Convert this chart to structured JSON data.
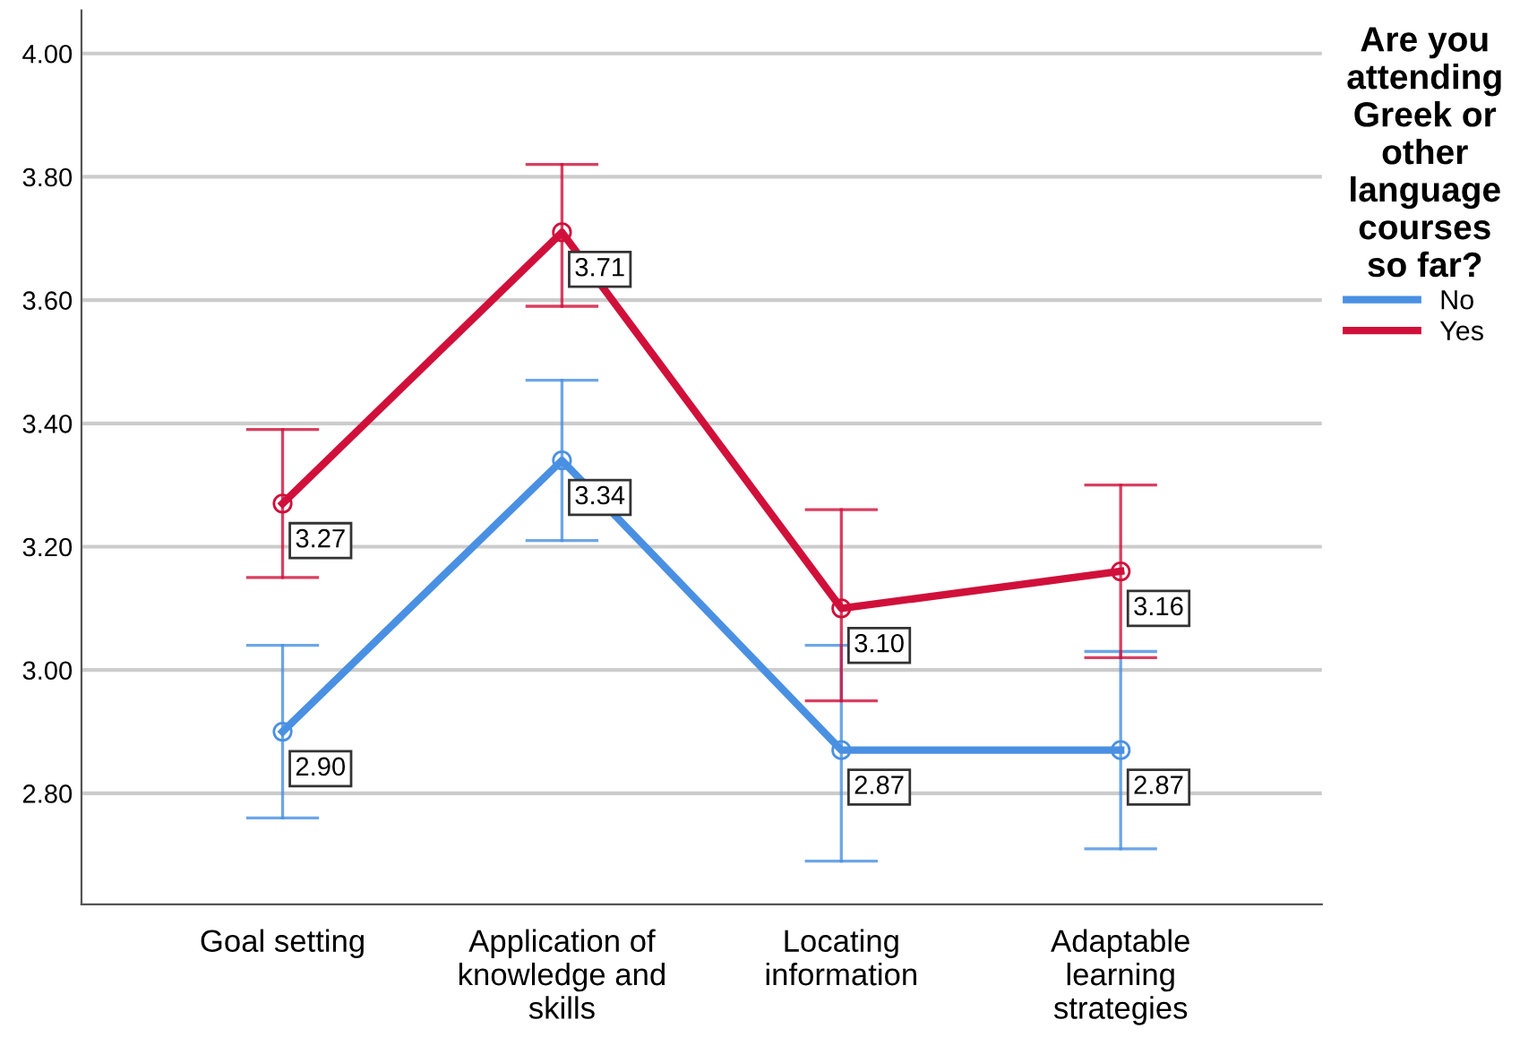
{
  "chart_data": {
    "type": "line",
    "categories": [
      "Goal setting",
      "Application of\nknowledge and\nskills",
      "Locating\ninformation",
      "Adaptable\nlearning\nstrategies"
    ],
    "series": [
      {
        "name": "No",
        "color": "#4a90e2",
        "values": [
          2.9,
          3.34,
          2.87,
          2.87
        ],
        "value_labels": [
          "2.90",
          "3.34",
          "2.87",
          "2.87"
        ],
        "errors": [
          [
            2.76,
            3.04
          ],
          [
            3.21,
            3.47
          ],
          [
            2.69,
            3.04
          ],
          [
            2.71,
            3.03
          ]
        ]
      },
      {
        "name": "Yes",
        "color": "#d0103a",
        "values": [
          3.27,
          3.71,
          3.1,
          3.16
        ],
        "value_labels": [
          "3.27",
          "3.71",
          "3.10",
          "3.16"
        ],
        "errors": [
          [
            3.15,
            3.39
          ],
          [
            3.59,
            3.82
          ],
          [
            2.95,
            3.26
          ],
          [
            3.02,
            3.3
          ]
        ]
      }
    ],
    "legend_title": "Are you\nattending\nGreek or\nother\nlanguage\ncourses\nso far?",
    "legend": "right",
    "ylim": [
      2.62,
      4.07
    ],
    "yticks": [
      {
        "value": 2.8,
        "label": "2.80"
      },
      {
        "value": 3.0,
        "label": "3.00"
      },
      {
        "value": 3.2,
        "label": "3.20"
      },
      {
        "value": 3.4,
        "label": "3.40"
      },
      {
        "value": 3.6,
        "label": "3.60"
      },
      {
        "value": 3.8,
        "label": "3.80"
      },
      {
        "value": 4.0,
        "label": "4.00"
      }
    ],
    "grid": "y",
    "marker": "circle",
    "line_style": "solid"
  }
}
